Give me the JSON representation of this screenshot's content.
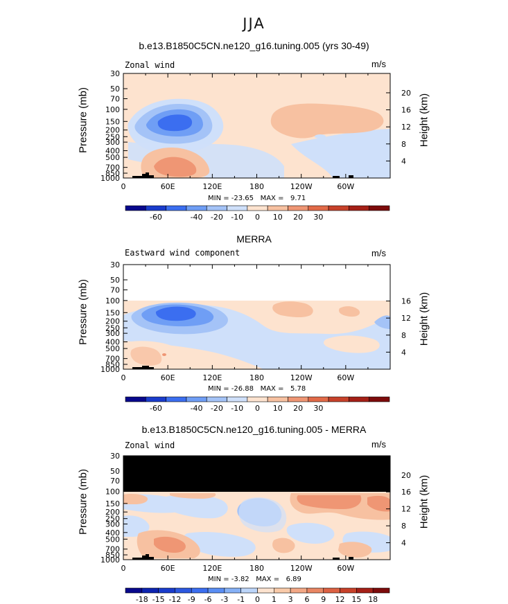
{
  "figure_title": "JJA",
  "chart_data": [
    {
      "type": "heatmap",
      "title": "b.e13.B1850C5CN.ne120_g16.tuning.005 (yrs 30-49)",
      "left_label": "Zonal wind",
      "units": "m/s",
      "ylabel": "Pressure (mb)",
      "ylabel_right": "Height (km)",
      "pressure_ticks": [
        "30",
        "50",
        "70",
        "100",
        "150",
        "200",
        "250",
        "300",
        "400",
        "500",
        "700",
        "850",
        "1000"
      ],
      "height_ticks": [
        "20",
        "16",
        "12",
        "8",
        "4"
      ],
      "x_ticks": [
        "0",
        "60E",
        "120E",
        "180",
        "120W",
        "60W"
      ],
      "stats": "MIN = -23.65   MAX =   9.71",
      "colorbar_labels": [
        "-60",
        "-40",
        "-20",
        "-10",
        "0",
        "10",
        "20",
        "30"
      ],
      "colorbar_colors": [
        "#08088c",
        "#1a3ccc",
        "#3b6ef0",
        "#6f9ef5",
        "#a4c3f7",
        "#cfe0fa",
        "#fde3cf",
        "#f7c1a1",
        "#ef9674",
        "#e26a48",
        "#c7412a",
        "#a52017",
        "#7d0b0b"
      ]
    },
    {
      "type": "heatmap",
      "title": "MERRA",
      "left_label": "Eastward wind component",
      "units": "m/s",
      "ylabel": "Pressure (mb)",
      "ylabel_right": "Height (km)",
      "pressure_ticks": [
        "30",
        "50",
        "70",
        "100",
        "150",
        "200",
        "250",
        "300",
        "400",
        "500",
        "700",
        "850",
        "1000"
      ],
      "height_ticks": [
        "16",
        "12",
        "8",
        "4"
      ],
      "x_ticks": [
        "0",
        "60E",
        "120E",
        "180",
        "120W",
        "60W"
      ],
      "stats": "MIN = -26.88   MAX =   5.78",
      "colorbar_labels": [
        "-60",
        "-40",
        "-20",
        "-10",
        "0",
        "10",
        "20",
        "30"
      ],
      "colorbar_colors": [
        "#08088c",
        "#1a3ccc",
        "#3b6ef0",
        "#6f9ef5",
        "#a4c3f7",
        "#cfe0fa",
        "#fde3cf",
        "#f7c1a1",
        "#ef9674",
        "#e26a48",
        "#c7412a",
        "#a52017",
        "#7d0b0b"
      ]
    },
    {
      "type": "heatmap",
      "title": "b.e13.B1850C5CN.ne120_g16.tuning.005 - MERRA",
      "left_label": "Zonal wind",
      "units": "m/s",
      "ylabel": "Pressure (mb)",
      "ylabel_right": "Height (km)",
      "pressure_ticks": [
        "30",
        "50",
        "70",
        "100",
        "150",
        "200",
        "250",
        "300",
        "400",
        "500",
        "700",
        "850",
        "1000"
      ],
      "height_ticks": [
        "20",
        "16",
        "12",
        "8",
        "4"
      ],
      "x_ticks": [
        "0",
        "60E",
        "120E",
        "180",
        "120W",
        "60W"
      ],
      "stats": "MIN = -3.82   MAX =   6.89",
      "colorbar_labels": [
        "-18",
        "-15",
        "-12",
        "-9",
        "-6",
        "-3",
        "-1",
        "0",
        "1",
        "3",
        "6",
        "9",
        "12",
        "15",
        "18"
      ],
      "colorbar_colors": [
        "#08088c",
        "#0d24b0",
        "#1a3ccc",
        "#2c58e0",
        "#3b6ef0",
        "#5a8ef4",
        "#86b1f6",
        "#bcd5f9",
        "#fde3cf",
        "#f9caa9",
        "#f3a886",
        "#e98663",
        "#dc6143",
        "#c7412a",
        "#a52017",
        "#7d0b0b"
      ]
    }
  ]
}
